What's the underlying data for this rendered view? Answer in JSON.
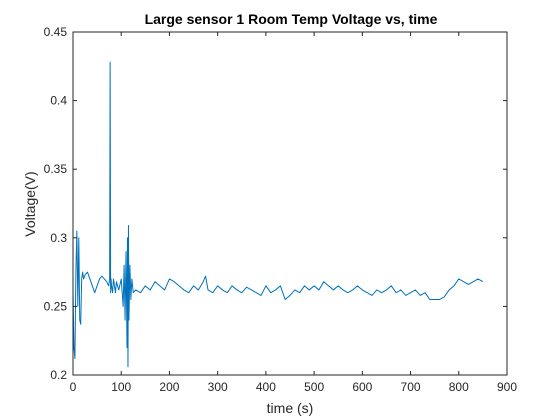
{
  "chart_data": {
    "type": "line",
    "title": "Large sensor 1 Room Temp Voltage vs, time",
    "xlabel": "time (s)",
    "ylabel": "Voltage(V)",
    "xlim": [
      0,
      900
    ],
    "ylim": [
      0.2,
      0.45
    ],
    "xticks": [
      0,
      100,
      200,
      300,
      400,
      500,
      600,
      700,
      800,
      900
    ],
    "yticks": [
      0.2,
      0.25,
      0.3,
      0.35,
      0.4,
      0.45
    ],
    "xtick_labels": [
      "0",
      "100",
      "200",
      "300",
      "400",
      "500",
      "600",
      "700",
      "800",
      "900"
    ],
    "ytick_labels": [
      "0.2",
      "0.25",
      "0.3",
      "0.35",
      "0.4",
      "0.45"
    ],
    "grid": false,
    "box": true,
    "series": [
      {
        "color": "#0072bd",
        "x": [
          0,
          2,
          4,
          6,
          8,
          10,
          12,
          14,
          16,
          18,
          20,
          22,
          25,
          30,
          35,
          40,
          45,
          50,
          55,
          60,
          65,
          70,
          74,
          76,
          77,
          78,
          79,
          80,
          82,
          84,
          86,
          88,
          90,
          95,
          100,
          104,
          106,
          108,
          110,
          112,
          113,
          114,
          115,
          116,
          118,
          120,
          122,
          125,
          130,
          140,
          150,
          160,
          170,
          180,
          190,
          200,
          210,
          220,
          230,
          240,
          250,
          260,
          270,
          275,
          280,
          290,
          300,
          310,
          320,
          330,
          340,
          350,
          360,
          370,
          380,
          390,
          400,
          410,
          420,
          430,
          440,
          450,
          460,
          470,
          480,
          490,
          500,
          510,
          520,
          530,
          540,
          550,
          560,
          570,
          580,
          590,
          600,
          610,
          620,
          630,
          640,
          650,
          660,
          670,
          680,
          690,
          700,
          710,
          720,
          730,
          740,
          750,
          760,
          770,
          780,
          790,
          800,
          810,
          820,
          830,
          840,
          850
        ],
        "y": [
          0.26,
          0.22,
          0.212,
          0.275,
          0.305,
          0.25,
          0.3,
          0.24,
          0.237,
          0.27,
          0.275,
          0.27,
          0.273,
          0.275,
          0.27,
          0.265,
          0.26,
          0.265,
          0.27,
          0.272,
          0.27,
          0.268,
          0.265,
          0.27,
          0.428,
          0.26,
          0.27,
          0.265,
          0.26,
          0.27,
          0.265,
          0.26,
          0.268,
          0.262,
          0.27,
          0.25,
          0.28,
          0.24,
          0.29,
          0.22,
          0.3,
          0.206,
          0.309,
          0.24,
          0.28,
          0.255,
          0.27,
          0.26,
          0.262,
          0.26,
          0.265,
          0.262,
          0.268,
          0.265,
          0.262,
          0.27,
          0.268,
          0.265,
          0.262,
          0.26,
          0.265,
          0.262,
          0.268,
          0.272,
          0.262,
          0.26,
          0.265,
          0.262,
          0.26,
          0.265,
          0.262,
          0.26,
          0.264,
          0.262,
          0.26,
          0.258,
          0.265,
          0.26,
          0.262,
          0.265,
          0.255,
          0.258,
          0.262,
          0.26,
          0.265,
          0.262,
          0.265,
          0.262,
          0.268,
          0.265,
          0.262,
          0.265,
          0.262,
          0.26,
          0.262,
          0.265,
          0.262,
          0.26,
          0.258,
          0.262,
          0.26,
          0.262,
          0.265,
          0.26,
          0.262,
          0.258,
          0.26,
          0.262,
          0.258,
          0.26,
          0.255,
          0.255,
          0.255,
          0.257,
          0.262,
          0.265,
          0.27,
          0.268,
          0.266,
          0.268,
          0.27,
          0.268
        ]
      }
    ]
  }
}
